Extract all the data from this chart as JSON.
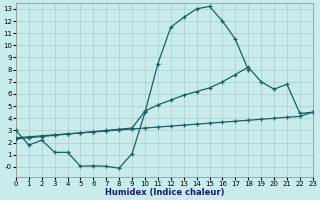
{
  "bg_color": "#c8ecec",
  "grid_color": "#aacece",
  "line_color": "#1a6060",
  "xlabel": "Humidex (Indice chaleur)",
  "xlim": [
    0,
    23
  ],
  "ylim": [
    -1,
    13
  ],
  "series1_x": [
    0,
    1,
    2,
    3,
    4,
    5,
    6,
    7,
    8,
    9,
    10,
    11,
    12,
    13,
    14,
    15,
    16,
    17,
    18
  ],
  "series1_y": [
    3.0,
    1.8,
    2.2,
    1.2,
    1.2,
    0.05,
    0.1,
    0.05,
    -0.1,
    1.1,
    4.5,
    8.5,
    11.5,
    12.3,
    13.0,
    13.2,
    12.0,
    10.5,
    8.0
  ],
  "series2_x": [
    0,
    1,
    2,
    3,
    4,
    5,
    6,
    7,
    8,
    9,
    10,
    11,
    12,
    13,
    14,
    15,
    16,
    17,
    18,
    19,
    20,
    21,
    22,
    23
  ],
  "series2_y": [
    2.3,
    2.4,
    2.5,
    2.6,
    2.7,
    2.8,
    2.9,
    3.0,
    3.1,
    3.2,
    4.6,
    5.1,
    5.5,
    5.9,
    6.2,
    6.5,
    7.0,
    7.6,
    8.2,
    7.0,
    6.4,
    6.8,
    4.4,
    4.5
  ],
  "series3_x": [
    0,
    1,
    2,
    3,
    4,
    5,
    6,
    7,
    8,
    9,
    10,
    11,
    12,
    13,
    14,
    15,
    16,
    17,
    18,
    19,
    20,
    21,
    22,
    23
  ],
  "series3_y": [
    2.4,
    2.48,
    2.56,
    2.64,
    2.72,
    2.8,
    2.88,
    2.96,
    3.04,
    3.12,
    3.2,
    3.28,
    3.36,
    3.44,
    3.52,
    3.6,
    3.68,
    3.76,
    3.84,
    3.92,
    4.0,
    4.08,
    4.16,
    4.5
  ]
}
